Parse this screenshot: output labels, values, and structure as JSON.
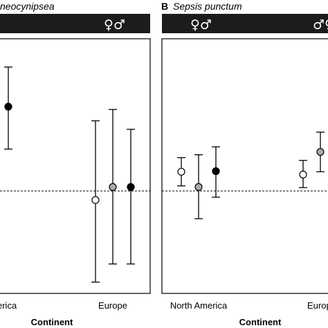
{
  "chart_data": [
    {
      "type": "scatter",
      "panel_label": "",
      "title": "neocynipsea",
      "header_symbols": [
        "",
        "♀♂"
      ],
      "categories": [
        "North America",
        "Europe"
      ],
      "tick_labels": [
        "erica",
        "Europe"
      ],
      "xlabel": "Continent",
      "ylabel": "",
      "reference_line": 0,
      "ylim": [
        -1.6,
        2.9
      ],
      "series": [
        {
          "fill": "#ffffff",
          "points": [
            {
              "category": "Europe",
              "y": 0.05,
              "lo": -1.4,
              "hi": 1.45
            }
          ]
        },
        {
          "fill": "#aaaaaa",
          "points": [
            {
              "category": "Europe",
              "y": 0.28,
              "lo": -1.08,
              "hi": 1.65
            }
          ]
        },
        {
          "fill": "#000000",
          "points": [
            {
              "category": "North America",
              "y": 1.7,
              "lo": 0.95,
              "hi": 2.4
            },
            {
              "category": "Europe",
              "y": 0.28,
              "lo": -1.08,
              "hi": 1.3
            }
          ]
        }
      ]
    },
    {
      "type": "scatter",
      "panel_label": "B",
      "title": "Sepsis punctum",
      "header_symbols": [
        "♀♂",
        "♂♀"
      ],
      "categories": [
        "North America",
        "Europe"
      ],
      "tick_labels": [
        "North America",
        "Europ"
      ],
      "xlabel": "Continent",
      "ylabel": "",
      "reference_line": 0,
      "ylim": [
        -1.6,
        2.9
      ],
      "series": [
        {
          "fill": "#ffffff",
          "points": [
            {
              "category": "North America",
              "y": 0.55,
              "lo": 0.3,
              "hi": 0.8
            },
            {
              "category": "Europe",
              "y": 0.5,
              "lo": 0.27,
              "hi": 0.75
            }
          ]
        },
        {
          "fill": "#aaaaaa",
          "points": [
            {
              "category": "North America",
              "y": 0.28,
              "lo": -0.28,
              "hi": 0.85
            },
            {
              "category": "Europe",
              "y": 0.9,
              "lo": 0.55,
              "hi": 1.25
            }
          ]
        },
        {
          "fill": "#000000",
          "points": [
            {
              "category": "North America",
              "y": 0.56,
              "lo": 0.1,
              "hi": 0.99
            }
          ]
        }
      ]
    }
  ]
}
